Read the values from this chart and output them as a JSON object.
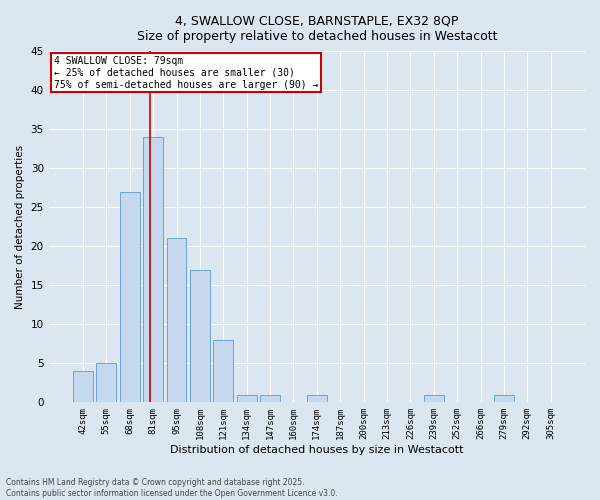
{
  "title_line1": "4, SWALLOW CLOSE, BARNSTAPLE, EX32 8QP",
  "title_line2": "Size of property relative to detached houses in Westacott",
  "xlabel": "Distribution of detached houses by size in Westacott",
  "ylabel": "Number of detached properties",
  "categories": [
    "42sqm",
    "55sqm",
    "68sqm",
    "81sqm",
    "95sqm",
    "108sqm",
    "121sqm",
    "134sqm",
    "147sqm",
    "160sqm",
    "174sqm",
    "187sqm",
    "200sqm",
    "213sqm",
    "226sqm",
    "239sqm",
    "252sqm",
    "266sqm",
    "279sqm",
    "292sqm",
    "305sqm"
  ],
  "values": [
    4,
    5,
    27,
    34,
    21,
    17,
    8,
    1,
    1,
    0,
    1,
    0,
    0,
    0,
    0,
    1,
    0,
    0,
    1,
    0,
    0
  ],
  "bar_color": "#c5d8ed",
  "bar_edge_color": "#5b9bd5",
  "background_color": "#dce6f1",
  "grid_color": "#ffffff",
  "annotation_text": "4 SWALLOW CLOSE: 79sqm\n← 25% of detached houses are smaller (30)\n75% of semi-detached houses are larger (90) →",
  "annotation_box_color": "#ffffff",
  "annotation_box_edge_color": "#cc0000",
  "vline_x_index": 2.88,
  "vline_color": "#cc0000",
  "ylim": [
    0,
    45
  ],
  "yticks": [
    0,
    5,
    10,
    15,
    20,
    25,
    30,
    35,
    40,
    45
  ],
  "footer_line1": "Contains HM Land Registry data © Crown copyright and database right 2025.",
  "footer_line2": "Contains public sector information licensed under the Open Government Licence v3.0."
}
